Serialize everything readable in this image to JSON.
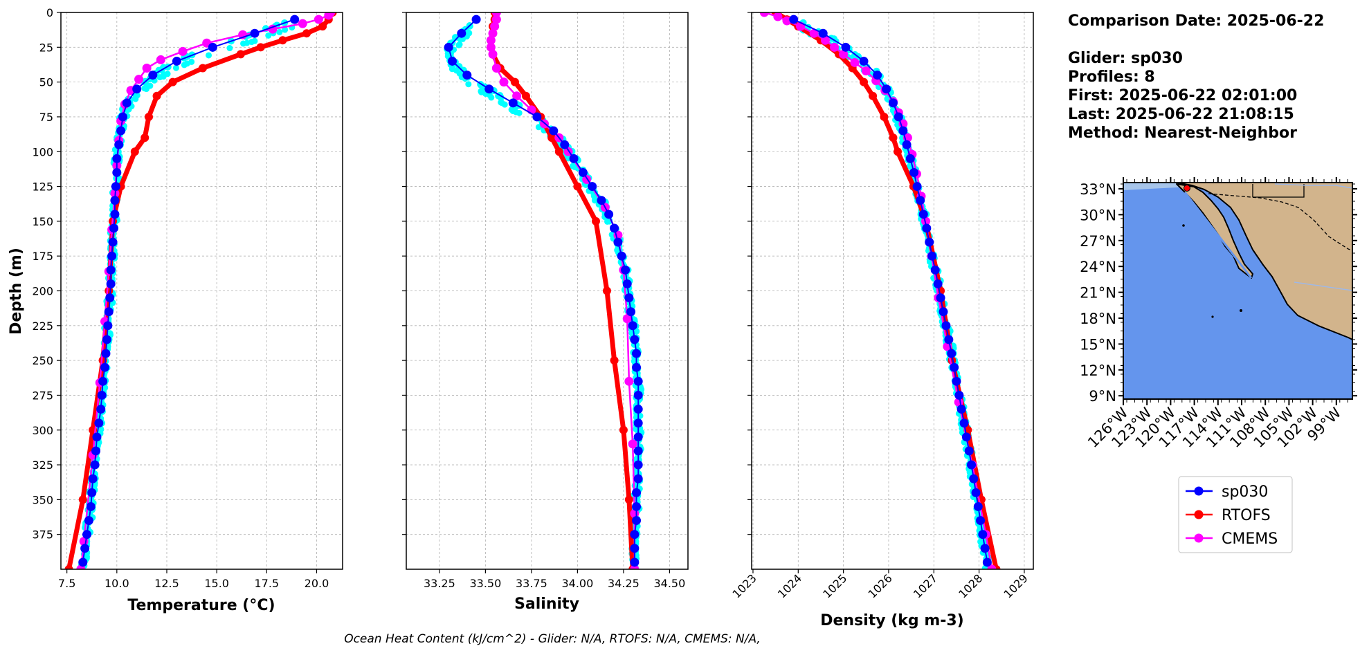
{
  "info": {
    "comparison_date": "Comparison Date: 2025-06-22",
    "glider": "Glider: sp030",
    "profiles": "Profiles: 8",
    "first": "First: 2025-06-22 02:01:00",
    "last": "Last: 2025-06-22 21:08:15",
    "method": "Method: Nearest-Neighbor"
  },
  "footer": "Ocean Heat Content (kJ/cm^2) - Glider: N/A,  RTOFS: N/A,  CMEMS: N/A,",
  "legend": {
    "entries": [
      {
        "label": "sp030",
        "color": "#0000ff"
      },
      {
        "label": "RTOFS",
        "color": "#ff0000"
      },
      {
        "label": "CMEMS",
        "color": "#ff00ff"
      }
    ]
  },
  "colors": {
    "glider_raw": "#00ffff",
    "land": "#d2b48c",
    "ocean": "#6495ed",
    "shelf": "#a7c5ea"
  },
  "chart_data": [
    {
      "type": "line",
      "xlabel": "Temperature (°C)",
      "ylabel": "Depth (m)",
      "xlim": [
        7.2,
        21.3
      ],
      "ylim": [
        400,
        0
      ],
      "xticks": [
        7.5,
        10.0,
        12.5,
        15.0,
        17.5,
        20.0
      ],
      "xtick_labels": [
        "7.5",
        "10.0",
        "12.5",
        "15.0",
        "17.5",
        "20.0"
      ],
      "yticks": [
        0,
        25,
        50,
        75,
        100,
        125,
        150,
        175,
        200,
        225,
        250,
        275,
        300,
        325,
        350,
        375
      ],
      "grid": true,
      "series": [
        {
          "name": "sp030",
          "depth": [
            5,
            15,
            25,
            35,
            45,
            55,
            65,
            75,
            85,
            95,
            105,
            115,
            125,
            135,
            145,
            155,
            165,
            175,
            185,
            195,
            205,
            215,
            225,
            235,
            245,
            255,
            265,
            275,
            285,
            295,
            305,
            315,
            325,
            335,
            345,
            355,
            365,
            375,
            385,
            395
          ],
          "values": [
            18.9,
            16.9,
            14.8,
            13.0,
            11.8,
            11.0,
            10.5,
            10.3,
            10.2,
            10.1,
            10.0,
            10.0,
            9.95,
            9.9,
            9.9,
            9.85,
            9.8,
            9.75,
            9.7,
            9.7,
            9.65,
            9.6,
            9.55,
            9.5,
            9.45,
            9.4,
            9.3,
            9.25,
            9.2,
            9.1,
            9.0,
            8.95,
            8.9,
            8.8,
            8.75,
            8.7,
            8.6,
            8.5,
            8.4,
            8.3
          ]
        },
        {
          "name": "RTOFS",
          "depth": [
            0,
            5,
            10,
            15,
            20,
            25,
            30,
            40,
            50,
            60,
            75,
            90,
            100,
            125,
            150,
            200,
            250,
            300,
            350,
            400
          ],
          "values": [
            20.8,
            20.6,
            20.3,
            19.5,
            18.3,
            17.2,
            16.2,
            14.3,
            12.8,
            12.0,
            11.6,
            11.4,
            10.9,
            10.2,
            9.8,
            9.6,
            9.3,
            8.8,
            8.3,
            7.6
          ]
        },
        {
          "name": "CMEMS",
          "depth": [
            0,
            2,
            5,
            8,
            12,
            16,
            22,
            28,
            34,
            40,
            48,
            56,
            66,
            78,
            92,
            110,
            130,
            156,
            186,
            222,
            266,
            318,
            380,
            400
          ],
          "values": [
            20.7,
            20.6,
            20.1,
            19.3,
            17.8,
            16.3,
            14.5,
            13.3,
            12.2,
            11.5,
            11.1,
            10.7,
            10.4,
            10.2,
            10.1,
            10.0,
            9.9,
            9.75,
            9.6,
            9.4,
            9.15,
            8.8,
            8.35,
            8.2
          ]
        }
      ]
    },
    {
      "type": "line",
      "xlabel": "Salinity",
      "xlim": [
        33.07,
        34.6
      ],
      "ylim": [
        400,
        0
      ],
      "xticks": [
        33.25,
        33.5,
        33.75,
        34.0,
        34.25,
        34.5
      ],
      "xtick_labels": [
        "33.25",
        "33.50",
        "33.75",
        "34.00",
        "34.25",
        "34.50"
      ],
      "yticks": [
        0,
        25,
        50,
        75,
        100,
        125,
        150,
        175,
        200,
        225,
        250,
        275,
        300,
        325,
        350,
        375
      ],
      "grid": true,
      "series": [
        {
          "name": "sp030",
          "depth": [
            5,
            15,
            25,
            35,
            45,
            55,
            65,
            75,
            85,
            95,
            105,
            115,
            125,
            135,
            145,
            155,
            165,
            175,
            185,
            195,
            205,
            215,
            225,
            235,
            245,
            255,
            265,
            275,
            285,
            295,
            305,
            315,
            325,
            335,
            345,
            355,
            365,
            375,
            385,
            395
          ],
          "values": [
            33.45,
            33.37,
            33.3,
            33.32,
            33.4,
            33.52,
            33.65,
            33.78,
            33.87,
            33.93,
            33.98,
            34.03,
            34.08,
            34.13,
            34.17,
            34.2,
            34.22,
            34.24,
            34.26,
            34.27,
            34.28,
            34.29,
            34.3,
            34.31,
            34.32,
            34.32,
            34.33,
            34.33,
            34.33,
            34.33,
            34.33,
            34.33,
            34.33,
            34.33,
            34.32,
            34.32,
            34.32,
            34.31,
            34.31,
            34.31
          ]
        },
        {
          "name": "RTOFS",
          "depth": [
            0,
            5,
            10,
            20,
            30,
            40,
            50,
            60,
            75,
            90,
            100,
            125,
            150,
            200,
            250,
            300,
            350,
            400
          ],
          "values": [
            33.55,
            33.55,
            33.54,
            33.53,
            33.54,
            33.58,
            33.66,
            33.72,
            33.8,
            33.86,
            33.9,
            34.0,
            34.1,
            34.16,
            34.2,
            34.25,
            34.28,
            34.3
          ]
        },
        {
          "name": "CMEMS",
          "depth": [
            0,
            5,
            10,
            15,
            20,
            25,
            30,
            40,
            50,
            60,
            70,
            80,
            90,
            100,
            120,
            140,
            160,
            185,
            220,
            265,
            310,
            360,
            400
          ],
          "values": [
            33.56,
            33.56,
            33.55,
            33.54,
            33.53,
            33.53,
            33.54,
            33.56,
            33.6,
            33.67,
            33.75,
            33.82,
            33.9,
            33.95,
            34.05,
            34.15,
            34.22,
            34.25,
            34.27,
            34.28,
            34.3,
            34.31,
            34.31
          ]
        }
      ]
    },
    {
      "type": "line",
      "xlabel": "Density (kg m-3)",
      "xlim": [
        1022.97,
        1029.2
      ],
      "ylim": [
        400,
        0
      ],
      "xticks": [
        1023,
        1024,
        1025,
        1026,
        1027,
        1028,
        1029
      ],
      "xtick_labels": [
        "1023",
        "1024",
        "1025",
        "1026",
        "1027",
        "1028",
        "1029"
      ],
      "yticks": [
        0,
        25,
        50,
        75,
        100,
        125,
        150,
        175,
        200,
        225,
        250,
        275,
        300,
        325,
        350,
        375
      ],
      "grid": true,
      "series": [
        {
          "name": "sp030",
          "depth": [
            5,
            15,
            25,
            35,
            45,
            55,
            65,
            75,
            85,
            95,
            105,
            115,
            125,
            135,
            145,
            155,
            165,
            175,
            185,
            195,
            205,
            215,
            225,
            235,
            245,
            255,
            265,
            275,
            285,
            295,
            305,
            315,
            325,
            335,
            345,
            355,
            365,
            375,
            385,
            395
          ],
          "values": [
            1023.9,
            1024.55,
            1025.05,
            1025.45,
            1025.75,
            1025.95,
            1026.1,
            1026.22,
            1026.32,
            1026.4,
            1026.48,
            1026.56,
            1026.63,
            1026.7,
            1026.77,
            1026.84,
            1026.9,
            1026.96,
            1027.03,
            1027.09,
            1027.15,
            1027.21,
            1027.27,
            1027.33,
            1027.39,
            1027.45,
            1027.5,
            1027.56,
            1027.61,
            1027.67,
            1027.72,
            1027.78,
            1027.83,
            1027.88,
            1027.93,
            1027.98,
            1028.03,
            1028.08,
            1028.13,
            1028.18
          ]
        },
        {
          "name": "RTOFS",
          "depth": [
            0,
            5,
            10,
            20,
            30,
            40,
            50,
            60,
            75,
            90,
            100,
            125,
            150,
            200,
            250,
            300,
            350,
            400
          ],
          "values": [
            1023.5,
            1023.75,
            1024.0,
            1024.5,
            1024.9,
            1025.2,
            1025.45,
            1025.65,
            1025.9,
            1026.1,
            1026.2,
            1026.55,
            1026.82,
            1027.15,
            1027.4,
            1027.75,
            1028.05,
            1028.38
          ]
        },
        {
          "name": "CMEMS",
          "depth": [
            0,
            3,
            6,
            10,
            15,
            20,
            25,
            30,
            36,
            42,
            49,
            56,
            64,
            72,
            80,
            90,
            102,
            116,
            132,
            150,
            175,
            205,
            240,
            280,
            325,
            375,
            400
          ],
          "values": [
            1023.25,
            1023.55,
            1023.75,
            1024.05,
            1024.35,
            1024.6,
            1024.8,
            1025.0,
            1025.25,
            1025.5,
            1025.72,
            1025.92,
            1026.1,
            1026.22,
            1026.32,
            1026.42,
            1026.52,
            1026.62,
            1026.72,
            1026.82,
            1026.95,
            1027.1,
            1027.3,
            1027.55,
            1027.85,
            1028.15,
            1028.28
          ]
        }
      ]
    }
  ],
  "map": {
    "lat_ticks": [
      "33°N",
      "30°N",
      "27°N",
      "24°N",
      "21°N",
      "18°N",
      "15°N",
      "12°N",
      "9°N"
    ],
    "lon_ticks": [
      "126°W",
      "123°W",
      "120°W",
      "117°W",
      "114°W",
      "111°W",
      "108°W",
      "105°W",
      "102°W",
      "99°W"
    ]
  }
}
